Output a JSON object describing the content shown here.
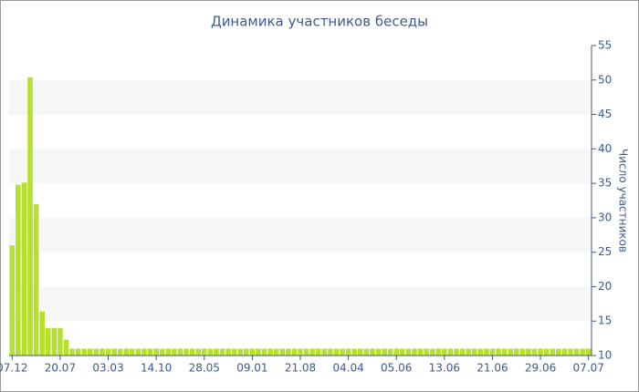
{
  "chart_data": {
    "type": "bar",
    "title": "Динамика участников беседы",
    "y_label": "Число участников",
    "categories": [
      "07.12",
      null,
      null,
      null,
      null,
      null,
      null,
      null,
      "20.07",
      null,
      null,
      null,
      null,
      null,
      null,
      null,
      "03.03",
      null,
      null,
      null,
      null,
      null,
      null,
      null,
      "14.10",
      null,
      null,
      null,
      null,
      null,
      null,
      null,
      "28.05",
      null,
      null,
      null,
      null,
      null,
      null,
      null,
      "09.01",
      null,
      null,
      null,
      null,
      null,
      null,
      null,
      "21.08",
      null,
      null,
      null,
      null,
      null,
      null,
      null,
      "04.04",
      null,
      null,
      null,
      null,
      null,
      null,
      null,
      "05.06",
      null,
      null,
      null,
      null,
      null,
      null,
      null,
      "13.06",
      null,
      null,
      null,
      null,
      null,
      null,
      null,
      "21.06",
      null,
      null,
      null,
      null,
      null,
      null,
      null,
      "29.06",
      null,
      null,
      null,
      null,
      null,
      null,
      null,
      "07.07"
    ],
    "values": [
      26,
      34.8,
      35.1,
      50.4,
      32,
      16.4,
      14,
      14,
      14,
      12.3,
      11,
      11,
      11,
      11,
      11,
      11,
      11,
      11,
      11,
      11,
      11,
      11,
      11,
      11,
      11,
      11,
      11,
      11,
      11,
      11,
      11,
      11,
      11,
      11,
      11,
      11,
      11,
      11,
      11,
      11,
      11,
      11,
      11,
      11,
      11,
      11,
      11,
      11,
      11,
      11,
      11,
      11,
      11,
      11,
      11,
      11,
      11,
      11,
      11,
      11,
      11,
      11,
      11,
      11,
      11,
      11,
      11,
      11,
      11,
      11,
      11,
      11,
      11,
      11,
      11,
      11,
      11,
      11,
      11,
      11,
      11,
      11,
      11,
      11,
      11,
      11,
      11,
      11,
      11,
      11,
      11,
      11,
      11,
      11,
      11,
      11,
      11
    ],
    "color": "#b5e02e",
    "ylim": [
      10,
      55
    ],
    "yticks": [
      10,
      15,
      20,
      25,
      30,
      35,
      40,
      45,
      50,
      55
    ],
    "y_axis_side": "right",
    "grid": true
  }
}
